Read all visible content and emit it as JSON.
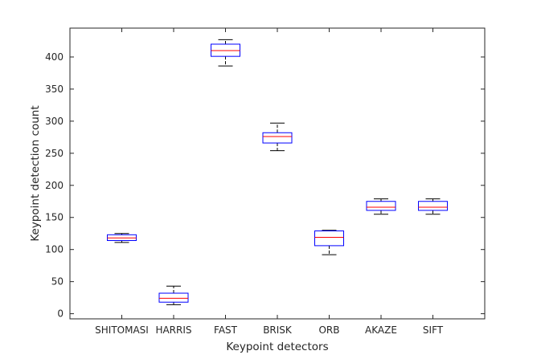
{
  "chart_data": {
    "type": "boxplot",
    "xlabel": "Keypoint detectors",
    "ylabel": "Keypoint detection count",
    "ylim": [
      -8,
      445
    ],
    "yticks": [
      0,
      50,
      100,
      150,
      200,
      250,
      300,
      350,
      400
    ],
    "grid": false,
    "box_color": "#0000ff",
    "median_color": "#ff0000",
    "whisker_color": "#000000",
    "categories": [
      "SHITOMASI",
      "HARRIS",
      "FAST",
      "BRISK",
      "ORB",
      "AKAZE",
      "SIFT"
    ],
    "boxes": [
      {
        "min": 111,
        "q1": 114,
        "median": 118,
        "q3": 123,
        "max": 125
      },
      {
        "min": 14,
        "q1": 18,
        "median": 24,
        "q3": 32,
        "max": 43
      },
      {
        "min": 386,
        "q1": 401,
        "median": 410,
        "q3": 420,
        "max": 427
      },
      {
        "min": 254,
        "q1": 266,
        "median": 276,
        "q3": 282,
        "max": 297
      },
      {
        "min": 92,
        "q1": 106,
        "median": 119,
        "q3": 129,
        "max": 130
      },
      {
        "min": 155,
        "q1": 161,
        "median": 166,
        "q3": 175,
        "max": 179
      },
      {
        "min": 155,
        "q1": 161,
        "median": 166,
        "q3": 175,
        "max": 179
      }
    ]
  }
}
